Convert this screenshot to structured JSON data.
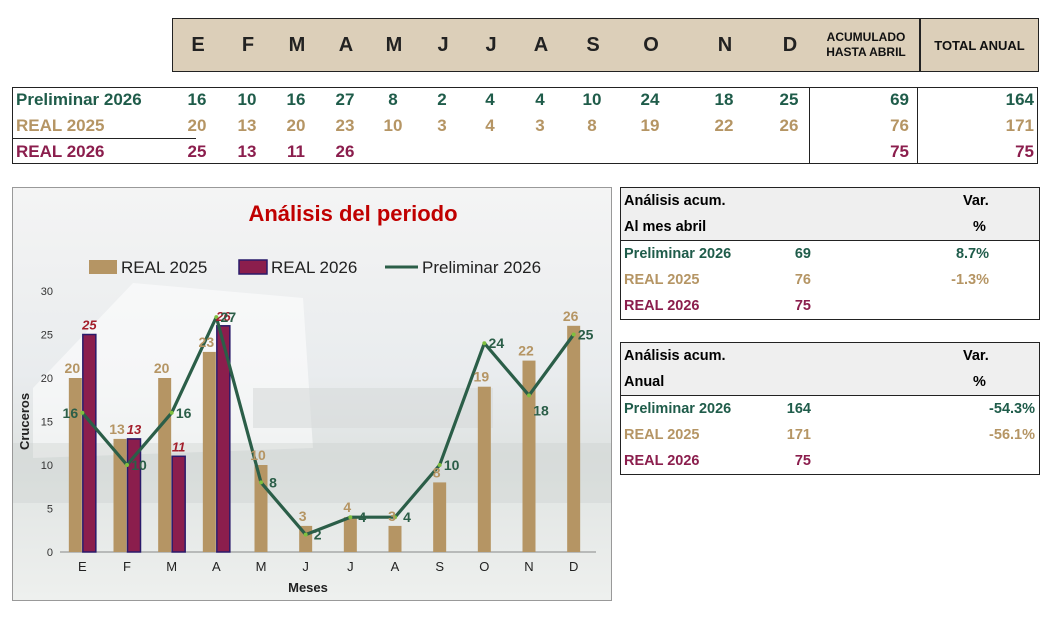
{
  "header": {
    "months": [
      "E",
      "F",
      "M",
      "A",
      "M",
      "J",
      "J",
      "A",
      "S",
      "O",
      "N",
      "D"
    ],
    "acumulado_label": "ACUMULADO HASTA ABRIL",
    "total_label": "TOTAL ANUAL"
  },
  "rows": [
    {
      "label": "Preliminar 2026",
      "values": [
        "16",
        "10",
        "16",
        "27",
        "8",
        "2",
        "4",
        "4",
        "10",
        "24",
        "18",
        "25"
      ],
      "acumulado": "69",
      "total": "164",
      "color": "#1f5c4a"
    },
    {
      "label": "REAL 2025",
      "values": [
        "20",
        "13",
        "20",
        "23",
        "10",
        "3",
        "4",
        "3",
        "8",
        "19",
        "22",
        "26"
      ],
      "acumulado": "76",
      "total": "171",
      "color": "#b59564"
    },
    {
      "label": "REAL 2026",
      "values": [
        "25",
        "13",
        "11",
        "26",
        "",
        "",
        "",
        "",
        "",
        "",
        "",
        ""
      ],
      "acumulado": "75",
      "total": "75",
      "color": "#8b1e4d"
    }
  ],
  "chart_data": {
    "type": "bar",
    "title": "Análisis del periodo",
    "xlabel": "Meses",
    "ylabel": "Cruceros",
    "categories": [
      "E",
      "F",
      "M",
      "A",
      "M",
      "J",
      "J",
      "A",
      "S",
      "O",
      "N",
      "D"
    ],
    "ylim": [
      0,
      30
    ],
    "yticks": [
      0,
      5,
      10,
      15,
      20,
      25,
      30
    ],
    "legend_position": "top",
    "series": [
      {
        "name": "REAL 2025",
        "kind": "bar",
        "color": "#b59564",
        "values": [
          20,
          13,
          20,
          23,
          10,
          3,
          4,
          3,
          8,
          19,
          22,
          26
        ]
      },
      {
        "name": "REAL 2026",
        "kind": "bar",
        "color": "#8b1e4d",
        "values": [
          25,
          13,
          11,
          26,
          null,
          null,
          null,
          null,
          null,
          null,
          null,
          null
        ]
      },
      {
        "name": "Preliminar 2026",
        "kind": "line",
        "color": "#2b5e48",
        "values": [
          16,
          10,
          16,
          27,
          8,
          2,
          4,
          4,
          10,
          24,
          18,
          25
        ]
      }
    ]
  },
  "analysis_monthly": {
    "title1": "Análisis acum.",
    "title2": "Al mes abril",
    "var_label": "Var.",
    "pct_label": "%",
    "rows": [
      {
        "label": "Preliminar 2026",
        "value": "69",
        "var": "8.7%"
      },
      {
        "label": "REAL 2025",
        "value": "76",
        "var": "-1.3%"
      },
      {
        "label": "REAL 2026",
        "value": "75",
        "var": ""
      }
    ]
  },
  "analysis_annual": {
    "title1": "Análisis acum.",
    "title2": "Anual",
    "var_label": "Var.",
    "pct_label": "%",
    "rows": [
      {
        "label": "Preliminar 2026",
        "value": "164",
        "var": "-54.3%"
      },
      {
        "label": "REAL 2025",
        "value": "171",
        "var": "-56.1%"
      },
      {
        "label": "REAL 2026",
        "value": "75",
        "var": ""
      }
    ]
  }
}
